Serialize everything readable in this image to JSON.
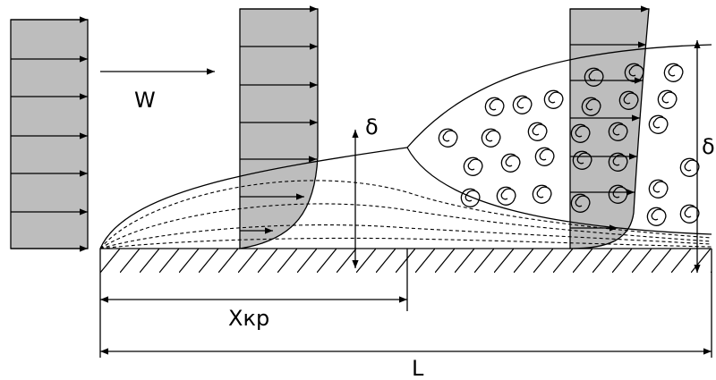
{
  "labels": {
    "velocity": "W",
    "delta_left": "δ",
    "delta_right": "δ",
    "x_critical": "Xкр",
    "length": "L"
  }
}
